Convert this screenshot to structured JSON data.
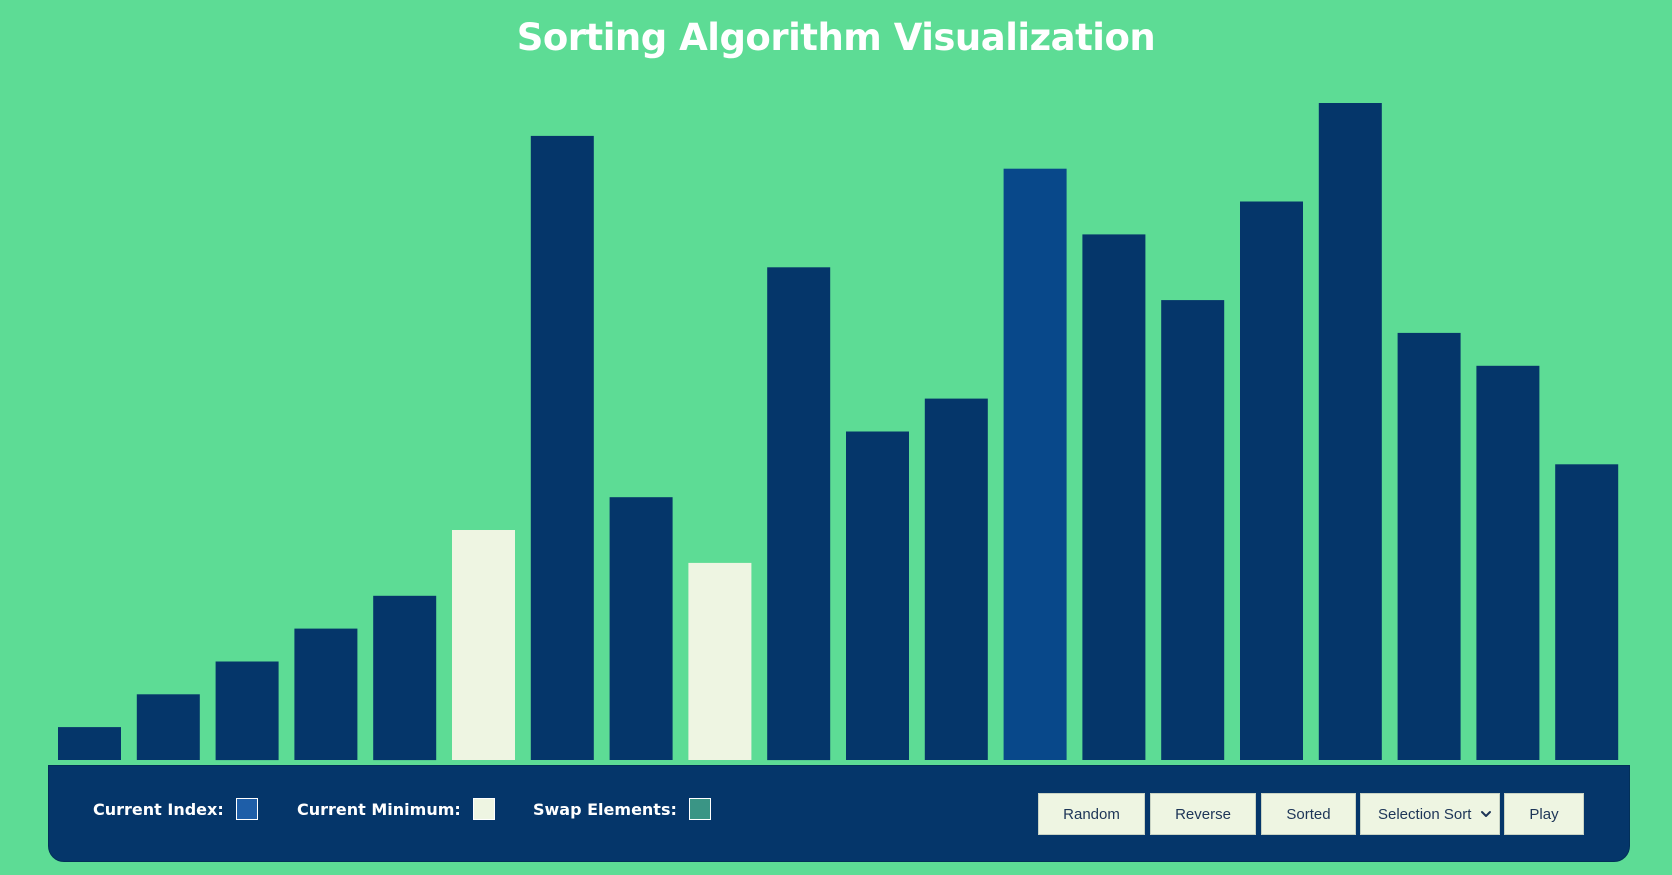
{
  "title": "Sorting Algorithm Visualization",
  "colors": {
    "background": "#5ddc95",
    "bar_default": "#05366a",
    "bar_current_index": "#08488a",
    "bar_current_minimum": "#eef5e2",
    "panel": "#05366a",
    "legend_current_index": "#1e5ea8",
    "legend_current_minimum": "#eef5e2",
    "legend_swap": "#3a9585"
  },
  "chart_data": {
    "type": "bar",
    "values": [
      10,
      20,
      30,
      40,
      50,
      70,
      190,
      80,
      60,
      150,
      100,
      110,
      180,
      160,
      140,
      170,
      200,
      130,
      120,
      90
    ],
    "states": [
      "default",
      "default",
      "default",
      "default",
      "default",
      "minimum",
      "default",
      "default",
      "minimum",
      "default",
      "default",
      "default",
      "current",
      "default",
      "default",
      "default",
      "default",
      "default",
      "default",
      "default"
    ]
  },
  "legend": {
    "current_index": "Current Index:",
    "current_minimum": "Current Minimum:",
    "swap_elements": "Swap Elements:"
  },
  "controls": {
    "random": "Random",
    "reverse": "Reverse",
    "sorted": "Sorted",
    "algorithm_selected": "Selection Sort",
    "play": "Play"
  }
}
